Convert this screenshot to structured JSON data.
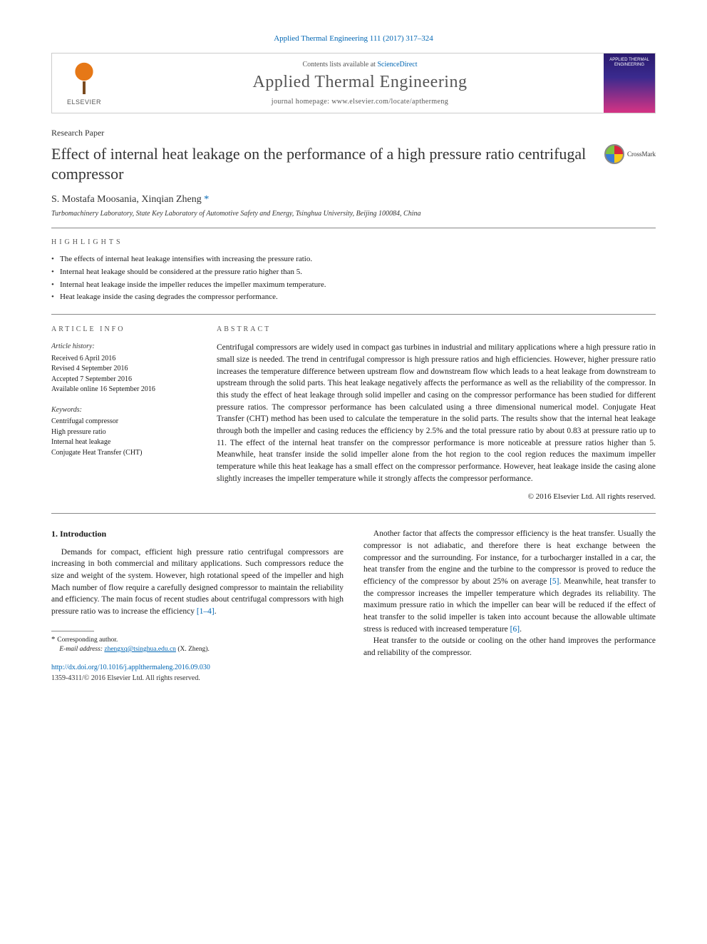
{
  "citation": "Applied Thermal Engineering 111 (2017) 317–324",
  "header": {
    "contents_prefix": "Contents lists available at ",
    "contents_link": "ScienceDirect",
    "journal": "Applied Thermal Engineering",
    "homepage_prefix": "journal homepage: ",
    "homepage_url": "www.elsevier.com/locate/apthermeng",
    "publisher": "ELSEVIER",
    "cover_text": "APPLIED THERMAL ENGINEERING"
  },
  "paper_type": "Research Paper",
  "title": "Effect of internal heat leakage on the performance of a high pressure ratio centrifugal compressor",
  "crossmark_label": "CrossMark",
  "authors_html": "S. Mostafa Moosania, Xinqian Zheng",
  "corr_mark": " *",
  "affiliation": "Turbomachinery Laboratory, State Key Laboratory of Automotive Safety and Energy, Tsinghua University, Beijing 100084, China",
  "section_labels": {
    "highlights": "HIGHLIGHTS",
    "article_info": "ARTICLE INFO",
    "abstract": "ABSTRACT"
  },
  "highlights": [
    "The effects of internal heat leakage intensifies with increasing the pressure ratio.",
    "Internal heat leakage should be considered at the pressure ratio higher than 5.",
    "Internal heat leakage inside the impeller reduces the impeller maximum temperature.",
    "Heat leakage inside the casing degrades the compressor performance."
  ],
  "article_info": {
    "history_head": "Article history:",
    "history": [
      "Received 6 April 2016",
      "Revised 4 September 2016",
      "Accepted 7 September 2016",
      "Available online 16 September 2016"
    ],
    "keywords_head": "Keywords:",
    "keywords": [
      "Centrifugal compressor",
      "High pressure ratio",
      "Internal heat leakage",
      "Conjugate Heat Transfer (CHT)"
    ]
  },
  "abstract": "Centrifugal compressors are widely used in compact gas turbines in industrial and military applications where a high pressure ratio in small size is needed. The trend in centrifugal compressor is high pressure ratios and high efficiencies. However, higher pressure ratio increases the temperature difference between upstream flow and downstream flow which leads to a heat leakage from downstream to upstream through the solid parts. This heat leakage negatively affects the performance as well as the reliability of the compressor. In this study the effect of heat leakage through solid impeller and casing on the compressor performance has been studied for different pressure ratios. The compressor performance has been calculated using a three dimensional numerical model. Conjugate Heat Transfer (CHT) method has been used to calculate the temperature in the solid parts. The results show that the internal heat leakage through both the impeller and casing reduces the efficiency by 2.5% and the total pressure ratio by about 0.83 at pressure ratio up to 11. The effect of the internal heat transfer on the compressor performance is more noticeable at pressure ratios higher than 5. Meanwhile, heat transfer inside the solid impeller alone from the hot region to the cool region reduces the maximum impeller temperature while this heat leakage has a small effect on the compressor performance. However, heat leakage inside the casing alone slightly increases the impeller temperature while it strongly affects the compressor performance.",
  "copyright": "© 2016 Elsevier Ltd. All rights reserved.",
  "intro": {
    "heading": "1. Introduction",
    "col1_p1_a": "Demands for compact, efficient high pressure ratio centrifugal compressors are increasing in both commercial and military applications. Such compressors reduce the size and weight of the system. However, high rotational speed of the impeller and high Mach number of flow require a carefully designed compressor to maintain the reliability and efficiency. The main focus of recent studies about centrifugal compressors with high pressure ratio was to increase the efficiency ",
    "ref1": "[1–4]",
    "col1_p1_b": ".",
    "col2_p1_a": "Another factor that affects the compressor efficiency is the heat transfer. Usually the compressor is not adiabatic, and therefore there is heat exchange between the compressor and the surrounding. For instance, for a turbocharger installed in a car, the heat transfer from the engine and the turbine to the compressor is proved to reduce the efficiency of the compressor by about 25% on average ",
    "ref5": "[5]",
    "col2_p1_b": ". Meanwhile, heat transfer to the compressor increases the impeller temperature which degrades its reliability. The maximum pressure ratio in which the impeller can bear will be reduced if the effect of heat transfer to the solid impeller is taken into account because the allowable ultimate stress is reduced with increased temperature ",
    "ref6": "[6]",
    "col2_p1_c": ".",
    "col2_p2": "Heat transfer to the outside or cooling on the other hand improves the performance and reliability of the compressor."
  },
  "footnote": {
    "corr_label": "Corresponding author.",
    "email_label": "E-mail address: ",
    "email": "zhengxq@tsinghua.edu.cn",
    "email_owner": " (X. Zheng)."
  },
  "footer": {
    "doi": "http://dx.doi.org/10.1016/j.applthermaleng.2016.09.030",
    "issn_line": "1359-4311/© 2016 Elsevier Ltd. All rights reserved."
  },
  "colors": {
    "link": "#0066b3",
    "text": "#1a1a1a",
    "rule": "#888888"
  }
}
